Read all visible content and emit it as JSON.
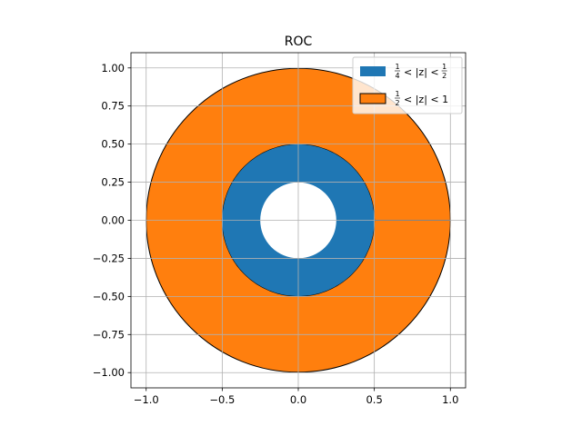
{
  "chart_data": {
    "type": "area",
    "title": "ROC",
    "xlabel": "",
    "ylabel": "",
    "xlim": [
      -1.1,
      1.1
    ],
    "ylim": [
      -1.1,
      1.1
    ],
    "aspect": "equal",
    "grid": true,
    "legend_position": "top-right",
    "x_ticks": [
      -1.0,
      -0.5,
      0.0,
      0.5,
      1.0
    ],
    "x_tick_labels": [
      "−1.0",
      "−0.5",
      "0.0",
      "0.5",
      "1.0"
    ],
    "y_ticks": [
      -1.0,
      -0.75,
      -0.5,
      -0.25,
      0.0,
      0.25,
      0.5,
      0.75,
      1.0
    ],
    "y_tick_labels": [
      "−1.00",
      "−0.75",
      "−0.50",
      "−0.25",
      "0.00",
      "0.25",
      "0.50",
      "0.75",
      "1.00"
    ],
    "series": [
      {
        "name": "1/4 < |z| < 1/2",
        "legend": {
          "num1": "1",
          "den1": "4",
          "mid": "< |z| <",
          "num2": "1",
          "den2": "2",
          "tail": ""
        },
        "inner_radius": 0.25,
        "outer_radius": 0.5,
        "color": "#1f77b4",
        "edge": "none"
      },
      {
        "name": "1/2 < |z| < 1",
        "legend": {
          "num1": "1",
          "den1": "2",
          "mid": "< |z| < 1",
          "num2": "",
          "den2": "",
          "tail": ""
        },
        "inner_radius": 0.5,
        "outer_radius": 1.0,
        "color": "#ff7f0e",
        "edge": "#000000"
      }
    ]
  }
}
